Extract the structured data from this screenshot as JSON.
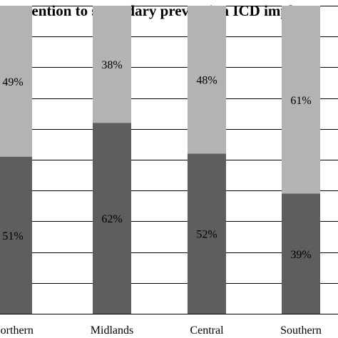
{
  "chart_data": {
    "type": "bar",
    "stacked": true,
    "percent": true,
    "title": "vention to secondary prevention ICD implant",
    "categories": [
      "Northern",
      "Midlands",
      "Central",
      "Southern"
    ],
    "series": [
      {
        "values": [
          51,
          62,
          52,
          39
        ],
        "labels": [
          "51%",
          "62%",
          "52%",
          "39%"
        ],
        "color": "#5e5e5e"
      },
      {
        "values": [
          49,
          38,
          48,
          61
        ],
        "labels": [
          "49%",
          "38%",
          "48%",
          "61%"
        ],
        "color": "#b3b3b3"
      }
    ],
    "ylim": [
      0,
      100
    ],
    "grid": true,
    "gridline_color": "#000000"
  }
}
